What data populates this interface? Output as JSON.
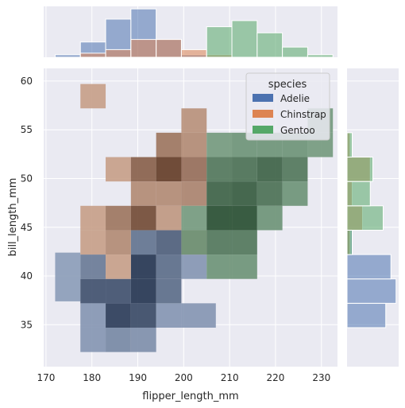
{
  "chart_data": {
    "type": "heatmap",
    "kind": "jointplot-hist",
    "xlabel": "flipper_length_mm",
    "ylabel": "bill_length_mm",
    "xlim": [
      169.5,
      233.5
    ],
    "ylim": [
      30.7,
      61.3
    ],
    "x_ticks": [
      170,
      180,
      190,
      200,
      210,
      220,
      230
    ],
    "y_ticks": [
      35,
      40,
      45,
      50,
      55,
      60
    ],
    "legend": {
      "title": "species",
      "placement": "top-right"
    },
    "colors": {
      "Adelie": "#4c72b0",
      "Chinstrap": "#dd8452",
      "Gentoo": "#55a868"
    },
    "series": [
      {
        "name": "Adelie",
        "cells": [
          {
            "x0": 172,
            "x1": 177.5,
            "y0": 37.4,
            "y1": 42.4,
            "level": 0.25
          },
          {
            "x0": 177.5,
            "x1": 183,
            "y0": 32.2,
            "y1": 34.7,
            "level": 0.3
          },
          {
            "x0": 177.5,
            "x1": 183,
            "y0": 34.7,
            "y1": 37.2,
            "level": 0.3
          },
          {
            "x0": 177.5,
            "x1": 183,
            "y0": 37.2,
            "y1": 39.7,
            "level": 0.8
          },
          {
            "x0": 177.5,
            "x1": 183,
            "y0": 39.7,
            "y1": 42.2,
            "level": 0.5
          },
          {
            "x0": 183,
            "x1": 188.5,
            "y0": 32.2,
            "y1": 34.7,
            "level": 0.4
          },
          {
            "x0": 183,
            "x1": 188.5,
            "y0": 34.7,
            "y1": 37.2,
            "level": 0.95
          },
          {
            "x0": 183,
            "x1": 188.5,
            "y0": 37.2,
            "y1": 39.7,
            "level": 0.8
          },
          {
            "x0": 188.5,
            "x1": 194,
            "y0": 32.2,
            "y1": 34.7,
            "level": 0.35
          },
          {
            "x0": 188.5,
            "x1": 194,
            "y0": 34.7,
            "y1": 37.2,
            "level": 0.85
          },
          {
            "x0": 188.5,
            "x1": 194,
            "y0": 37.2,
            "y1": 39.7,
            "level": 1.0
          },
          {
            "x0": 188.5,
            "x1": 194,
            "y0": 39.7,
            "y1": 42.2,
            "level": 1.0
          },
          {
            "x0": 188.5,
            "x1": 194,
            "y0": 42.2,
            "y1": 44.7,
            "level": 0.55
          },
          {
            "x0": 194,
            "x1": 199.5,
            "y0": 34.7,
            "y1": 37.2,
            "level": 0.3
          },
          {
            "x0": 194,
            "x1": 199.5,
            "y0": 37.2,
            "y1": 39.7,
            "level": 0.6
          },
          {
            "x0": 194,
            "x1": 199.5,
            "y0": 39.7,
            "y1": 42.2,
            "level": 0.6
          },
          {
            "x0": 194,
            "x1": 199.5,
            "y0": 42.2,
            "y1": 44.7,
            "level": 0.7
          },
          {
            "x0": 199.5,
            "x1": 207,
            "y0": 34.7,
            "y1": 37.2,
            "level": 0.3
          },
          {
            "x0": 199.5,
            "x1": 205,
            "y0": 39.7,
            "y1": 42.2,
            "level": 0.3
          }
        ]
      },
      {
        "name": "Chinstrap",
        "cells": [
          {
            "x0": 177.5,
            "x1": 183,
            "y0": 57.2,
            "y1": 59.7,
            "level": 0.3
          },
          {
            "x0": 177.5,
            "x1": 183,
            "y0": 44.7,
            "y1": 47.2,
            "level": 0.3
          },
          {
            "x0": 177.5,
            "x1": 183,
            "y0": 42.2,
            "y1": 44.7,
            "level": 0.3
          },
          {
            "x0": 183,
            "x1": 188.5,
            "y0": 49.7,
            "y1": 52.2,
            "level": 0.3
          },
          {
            "x0": 183,
            "x1": 188.5,
            "y0": 44.7,
            "y1": 47.2,
            "level": 0.6
          },
          {
            "x0": 183,
            "x1": 188.5,
            "y0": 42.2,
            "y1": 44.7,
            "level": 0.45
          },
          {
            "x0": 183,
            "x1": 188.5,
            "y0": 39.7,
            "y1": 42.2,
            "level": 0.3
          },
          {
            "x0": 188.5,
            "x1": 194,
            "y0": 49.7,
            "y1": 52.2,
            "level": 0.75
          },
          {
            "x0": 188.5,
            "x1": 194,
            "y0": 47.2,
            "y1": 49.7,
            "level": 0.45
          },
          {
            "x0": 188.5,
            "x1": 194,
            "y0": 44.7,
            "y1": 47.2,
            "level": 0.9
          },
          {
            "x0": 194,
            "x1": 199.5,
            "y0": 52.2,
            "y1": 54.7,
            "level": 0.6
          },
          {
            "x0": 194,
            "x1": 199.5,
            "y0": 49.7,
            "y1": 52.2,
            "level": 1.0
          },
          {
            "x0": 194,
            "x1": 199.5,
            "y0": 47.2,
            "y1": 49.7,
            "level": 0.45
          },
          {
            "x0": 194,
            "x1": 199.5,
            "y0": 44.7,
            "y1": 47.2,
            "level": 0.35
          },
          {
            "x0": 199.5,
            "x1": 205,
            "y0": 54.7,
            "y1": 57.2,
            "level": 0.4
          },
          {
            "x0": 199.5,
            "x1": 205,
            "y0": 52.2,
            "y1": 54.7,
            "level": 0.45
          },
          {
            "x0": 199.5,
            "x1": 205,
            "y0": 49.7,
            "y1": 52.2,
            "level": 0.65
          },
          {
            "x0": 199.5,
            "x1": 205,
            "y0": 47.2,
            "y1": 49.7,
            "level": 0.5
          },
          {
            "x0": 199.5,
            "x1": 205,
            "y0": 42.2,
            "y1": 44.7,
            "level": 0.3
          }
        ]
      },
      {
        "name": "Gentoo",
        "cells": [
          {
            "x0": 199.5,
            "x1": 205,
            "y0": 44.7,
            "y1": 47.2,
            "level": 0.45
          },
          {
            "x0": 199.5,
            "x1": 205,
            "y0": 42.2,
            "y1": 44.7,
            "level": 0.5
          },
          {
            "x0": 205,
            "x1": 210.5,
            "y0": 52.2,
            "y1": 54.7,
            "level": 0.45
          },
          {
            "x0": 205,
            "x1": 210.5,
            "y0": 49.7,
            "y1": 52.2,
            "level": 0.7
          },
          {
            "x0": 205,
            "x1": 210.5,
            "y0": 47.2,
            "y1": 49.7,
            "level": 0.85
          },
          {
            "x0": 205,
            "x1": 210.5,
            "y0": 44.7,
            "y1": 47.2,
            "level": 1.0
          },
          {
            "x0": 205,
            "x1": 210.5,
            "y0": 42.2,
            "y1": 44.7,
            "level": 0.7
          },
          {
            "x0": 205,
            "x1": 210.5,
            "y0": 39.7,
            "y1": 42.2,
            "level": 0.5
          },
          {
            "x0": 210.5,
            "x1": 216,
            "y0": 52.2,
            "y1": 54.7,
            "level": 0.5
          },
          {
            "x0": 210.5,
            "x1": 216,
            "y0": 49.7,
            "y1": 52.2,
            "level": 0.75
          },
          {
            "x0": 210.5,
            "x1": 216,
            "y0": 47.2,
            "y1": 49.7,
            "level": 0.9
          },
          {
            "x0": 210.5,
            "x1": 216,
            "y0": 44.7,
            "y1": 47.2,
            "level": 1.0
          },
          {
            "x0": 210.5,
            "x1": 216,
            "y0": 42.2,
            "y1": 44.7,
            "level": 0.7
          },
          {
            "x0": 210.5,
            "x1": 216,
            "y0": 39.7,
            "y1": 42.2,
            "level": 0.5
          },
          {
            "x0": 216,
            "x1": 221.5,
            "y0": 52.2,
            "y1": 54.7,
            "level": 0.5
          },
          {
            "x0": 216,
            "x1": 221.5,
            "y0": 49.7,
            "y1": 52.2,
            "level": 0.85
          },
          {
            "x0": 216,
            "x1": 221.5,
            "y0": 47.2,
            "y1": 49.7,
            "level": 0.75
          },
          {
            "x0": 216,
            "x1": 221.5,
            "y0": 44.7,
            "y1": 47.2,
            "level": 0.5
          },
          {
            "x0": 221.5,
            "x1": 227,
            "y0": 52.2,
            "y1": 54.7,
            "level": 0.5
          },
          {
            "x0": 221.5,
            "x1": 227,
            "y0": 49.7,
            "y1": 52.2,
            "level": 0.7
          },
          {
            "x0": 221.5,
            "x1": 227,
            "y0": 47.2,
            "y1": 49.7,
            "level": 0.5
          },
          {
            "x0": 227,
            "x1": 232.5,
            "y0": 54.7,
            "y1": 57.2,
            "level": 0.45
          },
          {
            "x0": 227,
            "x1": 232.5,
            "y0": 52.2,
            "y1": 54.7,
            "level": 0.45
          }
        ]
      }
    ],
    "marginal_x": {
      "axis": "flipper_length_mm",
      "series": [
        {
          "name": "Adelie",
          "bins": [
            {
              "x0": 172,
              "x1": 177.5,
              "count": 0.05
            },
            {
              "x0": 177.5,
              "x1": 183,
              "count": 0.3
            },
            {
              "x0": 183,
              "x1": 188.5,
              "count": 0.75
            },
            {
              "x0": 188.5,
              "x1": 194,
              "count": 0.95
            },
            {
              "x0": 194,
              "x1": 199.5,
              "count": 0.35
            },
            {
              "x0": 199.5,
              "x1": 205,
              "count": 0.05
            }
          ]
        },
        {
          "name": "Chinstrap",
          "bins": [
            {
              "x0": 177.5,
              "x1": 183,
              "count": 0.08
            },
            {
              "x0": 183,
              "x1": 188.5,
              "count": 0.15
            },
            {
              "x0": 188.5,
              "x1": 194,
              "count": 0.35
            },
            {
              "x0": 194,
              "x1": 199.5,
              "count": 0.35
            },
            {
              "x0": 199.5,
              "x1": 205,
              "count": 0.15
            },
            {
              "x0": 205,
              "x1": 210.5,
              "count": 0.05
            }
          ]
        },
        {
          "name": "Gentoo",
          "bins": [
            {
              "x0": 205,
              "x1": 210.5,
              "count": 0.6
            },
            {
              "x0": 210.5,
              "x1": 216,
              "count": 0.72
            },
            {
              "x0": 216,
              "x1": 221.5,
              "count": 0.48
            },
            {
              "x0": 221.5,
              "x1": 227,
              "count": 0.2
            },
            {
              "x0": 227,
              "x1": 232.5,
              "count": 0.05
            }
          ]
        }
      ]
    },
    "marginal_y": {
      "axis": "bill_length_mm",
      "series": [
        {
          "name": "Adelie",
          "bins": [
            {
              "y0": 32.2,
              "y1": 34.7,
              "count": 0.0
            },
            {
              "y0": 34.7,
              "y1": 37.2,
              "count": 0.75
            },
            {
              "y0": 37.2,
              "y1": 39.7,
              "count": 0.95
            },
            {
              "y0": 39.7,
              "y1": 42.2,
              "count": 0.85
            },
            {
              "y0": 42.2,
              "y1": 44.7,
              "count": 0.1
            },
            {
              "y0": 44.7,
              "y1": 47.2,
              "count": 0.02
            }
          ]
        },
        {
          "name": "Chinstrap",
          "bins": [
            {
              "y0": 42.2,
              "y1": 44.7,
              "count": 0.06
            },
            {
              "y0": 44.7,
              "y1": 47.2,
              "count": 0.3
            },
            {
              "y0": 47.2,
              "y1": 49.7,
              "count": 0.1
            },
            {
              "y0": 49.7,
              "y1": 52.2,
              "count": 0.45
            },
            {
              "y0": 52.2,
              "y1": 54.7,
              "count": 0.06
            }
          ]
        },
        {
          "name": "Gentoo",
          "bins": [
            {
              "y0": 42.2,
              "y1": 44.7,
              "count": 0.1
            },
            {
              "y0": 44.7,
              "y1": 47.2,
              "count": 0.7
            },
            {
              "y0": 47.2,
              "y1": 49.7,
              "count": 0.45
            },
            {
              "y0": 49.7,
              "y1": 52.2,
              "count": 0.5
            },
            {
              "y0": 52.2,
              "y1": 54.7,
              "count": 0.1
            }
          ]
        }
      ]
    }
  }
}
